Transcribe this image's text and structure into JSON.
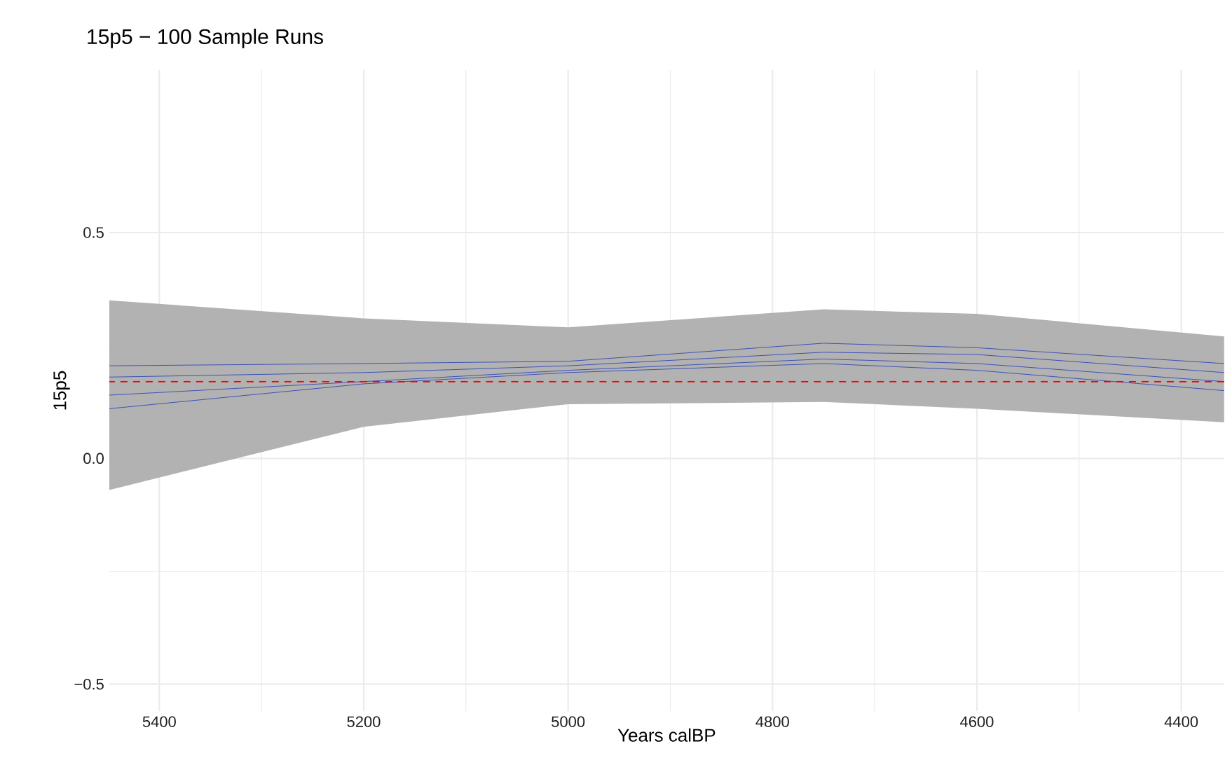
{
  "chart_data": {
    "type": "line",
    "title": "15p5 − 100 Sample Runs",
    "xlabel": "Years calBP",
    "ylabel": "15p5",
    "x": [
      5449,
      5200,
      5000,
      4750,
      4600,
      4358
    ],
    "series": [
      {
        "color": "#3f51b5",
        "values": [
          0.205,
          0.21,
          0.215,
          0.255,
          0.245,
          0.21
        ]
      },
      {
        "color": "#3f51b5",
        "values": [
          0.18,
          0.19,
          0.205,
          0.235,
          0.23,
          0.19
        ],
        "lower": [
          -0.07,
          0.07,
          0.12,
          0.125,
          0.11,
          0.08
        ],
        "upper": [
          0.35,
          0.31,
          0.29,
          0.33,
          0.32,
          0.27
        ]
      },
      {
        "color": "#3f51b5",
        "values": [
          0.14,
          0.17,
          0.195,
          0.22,
          0.21,
          0.17
        ]
      },
      {
        "color": "#3f51b5",
        "values": [
          0.11,
          0.165,
          0.19,
          0.21,
          0.195,
          0.15
        ]
      }
    ],
    "ref_lines": [
      {
        "axis": "y",
        "value": 0.17,
        "color": "#ff0000",
        "line_style": "dashed"
      }
    ],
    "xlim": [
      5449,
      4358
    ],
    "xticks": [
      5400,
      5200,
      5000,
      4800,
      4600,
      4400
    ],
    "ylim": [
      -0.56,
      0.86
    ],
    "yticks": [
      {
        "value": -0.5,
        "label": "−0.5"
      },
      {
        "value": 0,
        "label": "0.0"
      },
      {
        "value": 0.5,
        "label": "0.5"
      }
    ],
    "grid": true,
    "marker": "none",
    "line_style": "solid"
  }
}
